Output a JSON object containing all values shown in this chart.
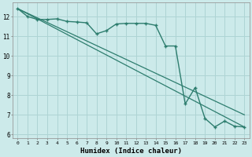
{
  "xlabel": "Humidex (Indice chaleur)",
  "bg_color": "#cceaea",
  "grid_color": "#aed4d4",
  "line_color": "#2d7d6e",
  "xlim": [
    -0.5,
    23.5
  ],
  "ylim": [
    5.8,
    12.7
  ],
  "xticks": [
    0,
    1,
    2,
    3,
    4,
    5,
    6,
    7,
    8,
    9,
    10,
    11,
    12,
    13,
    14,
    15,
    16,
    17,
    18,
    19,
    20,
    21,
    22,
    23
  ],
  "yticks": [
    6,
    7,
    8,
    9,
    10,
    11,
    12
  ],
  "line1_x": [
    0,
    1,
    2,
    3,
    4,
    5,
    6,
    7,
    8,
    9,
    10,
    11,
    12,
    13,
    14,
    15,
    16,
    17,
    18,
    19,
    20,
    21,
    22,
    23
  ],
  "line1_y": [
    12.4,
    12.0,
    11.85,
    11.85,
    11.88,
    11.75,
    11.72,
    11.68,
    11.12,
    11.28,
    11.62,
    11.65,
    11.65,
    11.65,
    11.55,
    10.5,
    10.5,
    7.55,
    8.38,
    6.82,
    6.38,
    6.68,
    6.42,
    6.38
  ],
  "line2_x": [
    0,
    23
  ],
  "line2_y": [
    12.4,
    6.38
  ],
  "line3_x": [
    0,
    23
  ],
  "line3_y": [
    12.4,
    7.0
  ]
}
